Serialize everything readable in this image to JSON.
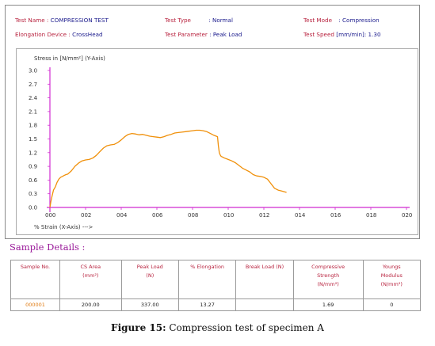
{
  "header": {
    "test_name_label": "Test Name :",
    "test_name_value": "COMPRESSION TEST",
    "test_type_label": "Test Type",
    "test_type_value": ": Normal",
    "test_mode_label": "Test Mode",
    "test_mode_value": ": Compression",
    "elong_label": "Elongation Device :",
    "elong_value": "CrossHead",
    "param_label": "Test Parameter",
    "param_value": ": Peak Load",
    "speed_label": "Test Speed",
    "speed_value": "[mm/min]: 1.30"
  },
  "chart_data": {
    "type": "line",
    "ylabel": "Stress in [N/mm²] (Y-Axis)",
    "xlabel": "% Strain (X-Axis) --->",
    "ylim": [
      0,
      3.0
    ],
    "xlim": [
      0,
      20
    ],
    "y_ticks": [
      "3.0",
      "2.7",
      "2.4",
      "2.1",
      "1.8",
      "1.5",
      "1.2",
      "0.9",
      "0.6",
      "0.3",
      "0.0"
    ],
    "x_ticks": [
      "000",
      "002",
      "004",
      "006",
      "008",
      "010",
      "012",
      "014",
      "016",
      "018",
      "020"
    ],
    "grid": false,
    "series": [
      {
        "color": "#f0900a",
        "x": [
          0.0,
          0.05,
          0.1,
          0.15,
          0.2,
          0.3,
          0.4,
          0.5,
          0.6,
          0.7,
          0.8,
          0.9,
          1.0,
          1.2,
          1.4,
          1.6,
          1.8,
          2.0,
          2.2,
          2.4,
          2.6,
          2.8,
          3.0,
          3.2,
          3.4,
          3.6,
          3.8,
          4.0,
          4.2,
          4.4,
          4.6,
          4.8,
          5.0,
          5.2,
          5.4,
          5.6,
          5.8,
          6.0,
          6.2,
          6.4,
          6.6,
          6.8,
          7.0,
          7.2,
          7.4,
          7.6,
          7.8,
          8.0,
          8.2,
          8.4,
          8.6,
          8.8,
          9.0,
          9.2,
          9.4,
          9.45,
          9.5,
          9.55,
          9.6,
          9.8,
          10.0,
          10.2,
          10.4,
          10.6,
          10.8,
          11.0,
          11.2,
          11.4,
          11.6,
          11.8,
          12.0,
          12.2,
          12.4,
          12.6,
          12.8,
          13.0,
          13.27
        ],
        "y": [
          0.0,
          0.12,
          0.22,
          0.3,
          0.38,
          0.45,
          0.55,
          0.62,
          0.66,
          0.68,
          0.7,
          0.72,
          0.73,
          0.8,
          0.9,
          0.97,
          1.02,
          1.04,
          1.05,
          1.08,
          1.14,
          1.22,
          1.3,
          1.35,
          1.37,
          1.38,
          1.42,
          1.48,
          1.55,
          1.6,
          1.62,
          1.61,
          1.59,
          1.6,
          1.58,
          1.56,
          1.55,
          1.54,
          1.53,
          1.55,
          1.58,
          1.6,
          1.63,
          1.64,
          1.65,
          1.66,
          1.67,
          1.68,
          1.69,
          1.69,
          1.68,
          1.66,
          1.62,
          1.58,
          1.55,
          1.35,
          1.2,
          1.15,
          1.12,
          1.08,
          1.05,
          1.02,
          0.98,
          0.92,
          0.86,
          0.82,
          0.78,
          0.72,
          0.69,
          0.68,
          0.66,
          0.62,
          0.52,
          0.42,
          0.38,
          0.36,
          0.33
        ]
      }
    ]
  },
  "sample_details": {
    "title": "Sample Details :",
    "headers": [
      "Sample No.",
      "CS Area\n(mm²)",
      "Peak Load\n(N)",
      "% Elongation",
      "Break Load (N)",
      "Compressive\nStrength\n(N/mm²)",
      "Youngs\nModulus\n(N/mm²)"
    ],
    "row": [
      "000001",
      "200.00",
      "337.00",
      "13.27",
      "",
      "1.69",
      "0"
    ]
  },
  "caption": {
    "label": "Figure 15:",
    "text": " Compression test of specimen A"
  }
}
